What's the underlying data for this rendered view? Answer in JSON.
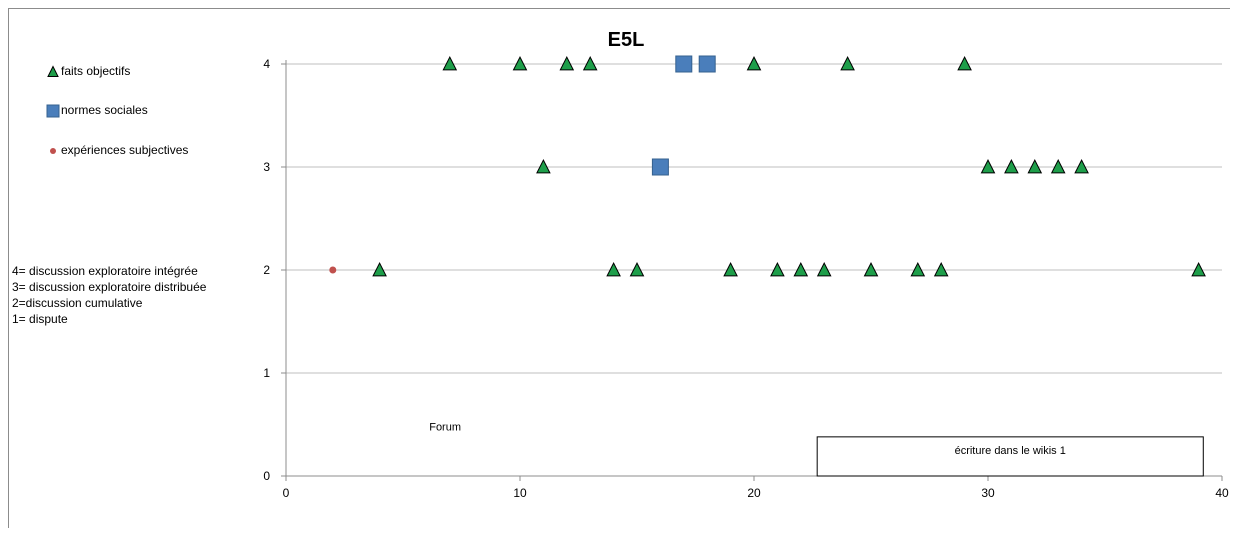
{
  "chart_data": {
    "type": "scatter",
    "title": "E5L",
    "xlim": [
      0,
      40
    ],
    "ylim": [
      0,
      4
    ],
    "xticks": [
      0,
      10,
      20,
      30,
      40
    ],
    "yticks": [
      0,
      1,
      2,
      3,
      4
    ],
    "grid": "horizontal",
    "legend_position": "top-left",
    "series": [
      {
        "name": "faits objectifs",
        "marker": "triangle",
        "color": "#1e9e4a",
        "points": [
          [
            4,
            2
          ],
          [
            7,
            4
          ],
          [
            10,
            4
          ],
          [
            11,
            3
          ],
          [
            12,
            4
          ],
          [
            13,
            4
          ],
          [
            14,
            2
          ],
          [
            15,
            2
          ],
          [
            19,
            2
          ],
          [
            20,
            4
          ],
          [
            21,
            2
          ],
          [
            22,
            2
          ],
          [
            23,
            2
          ],
          [
            24,
            4
          ],
          [
            25,
            2
          ],
          [
            27,
            2
          ],
          [
            28,
            2
          ],
          [
            29,
            4
          ],
          [
            30,
            3
          ],
          [
            31,
            3
          ],
          [
            32,
            3
          ],
          [
            33,
            3
          ],
          [
            34,
            3
          ],
          [
            39,
            2
          ]
        ]
      },
      {
        "name": "normes sociales",
        "marker": "square",
        "color": "#4a7ebb",
        "points": [
          [
            16,
            3
          ],
          [
            17,
            4
          ],
          [
            18,
            4
          ]
        ]
      },
      {
        "name": "expériences subjectives",
        "marker": "circle",
        "color": "#c0504d",
        "points": [
          [
            2,
            2
          ]
        ]
      }
    ],
    "annotations": [
      {
        "text": "Forum",
        "x": 6.8,
        "y": 0.25,
        "boxed": false
      },
      {
        "text": "écriture dans le  wikis 1",
        "x_start": 22.7,
        "x_end": 39.2,
        "y_start": 0,
        "y_end": 0.38,
        "boxed": true
      }
    ]
  },
  "notes": [
    "4= discussion exploratoire intégrée",
    "3= discussion exploratoire distribuée",
    "2=discussion cumulative",
    "1= dispute"
  ]
}
